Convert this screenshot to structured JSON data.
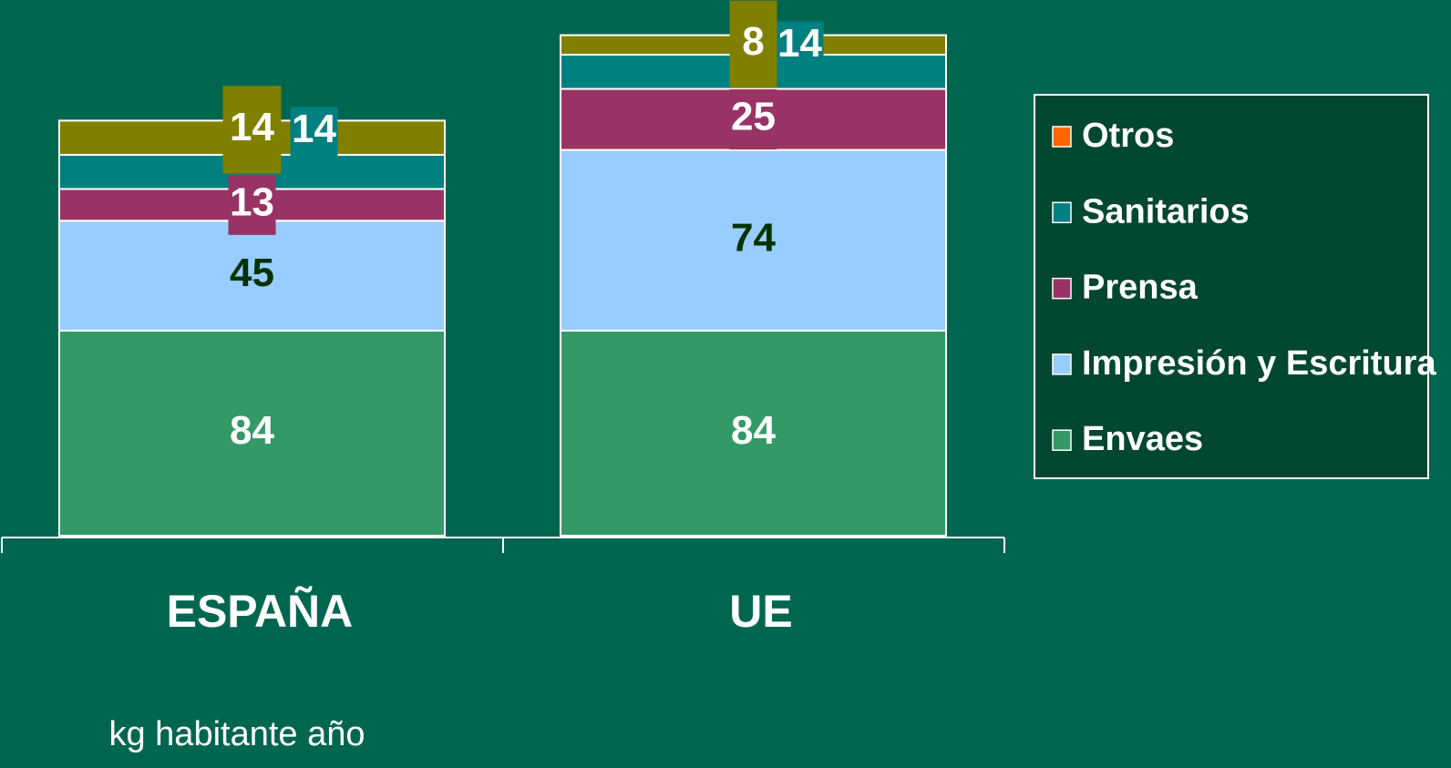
{
  "chart_data": {
    "type": "stacked_bar",
    "categories": [
      "ESPAÑA",
      "UE"
    ],
    "subtitle": "kg habitante año",
    "series": [
      {
        "name": "Envaes",
        "color": "#339966",
        "legend_color": "#339966",
        "values": [
          84,
          84
        ]
      },
      {
        "name": "Impresión y Escritura",
        "color": "#99ccff",
        "legend_color": "#99ccff",
        "values": [
          45,
          74
        ]
      },
      {
        "name": "Prensa",
        "color": "#993366",
        "legend_color": "#993366",
        "values": [
          13,
          25
        ]
      },
      {
        "name": "Sanitarios",
        "color": "#008080",
        "legend_color": "#008080",
        "values": [
          14,
          14
        ]
      },
      {
        "name": "Otros",
        "color": "#808000",
        "legend_color": "#ff6600",
        "values": [
          14,
          8
        ]
      }
    ],
    "legend": "right"
  }
}
